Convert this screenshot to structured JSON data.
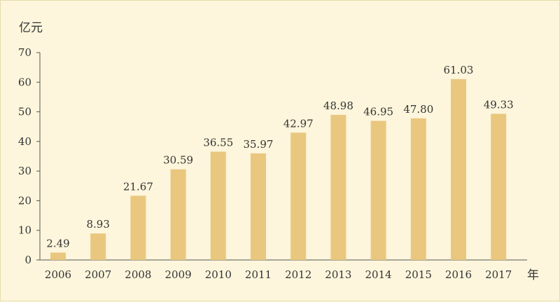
{
  "chart_data": {
    "type": "bar",
    "title": "",
    "xlabel": "年",
    "ylabel": "亿元",
    "categories": [
      "2006",
      "2007",
      "2008",
      "2009",
      "2010",
      "2011",
      "2012",
      "2013",
      "2014",
      "2015",
      "2016",
      "2017"
    ],
    "values": [
      2.49,
      8.93,
      21.67,
      30.59,
      36.55,
      35.97,
      42.97,
      48.98,
      46.95,
      47.8,
      61.03,
      49.33
    ],
    "value_labels": [
      "2.49",
      "8.93",
      "21.67",
      "30.59",
      "36.55",
      "35.97",
      "42.97",
      "48.98",
      "46.95",
      "47.80",
      "61.03",
      "49.33"
    ],
    "ylim": [
      0,
      70
    ],
    "yticks": [
      "0",
      "10",
      "20",
      "30",
      "40",
      "50",
      "60",
      "70"
    ],
    "grid": false,
    "legend": "none",
    "colors": {
      "bar": "#e9c77e",
      "axis": "#555555",
      "background": "#fdf6dc"
    }
  }
}
